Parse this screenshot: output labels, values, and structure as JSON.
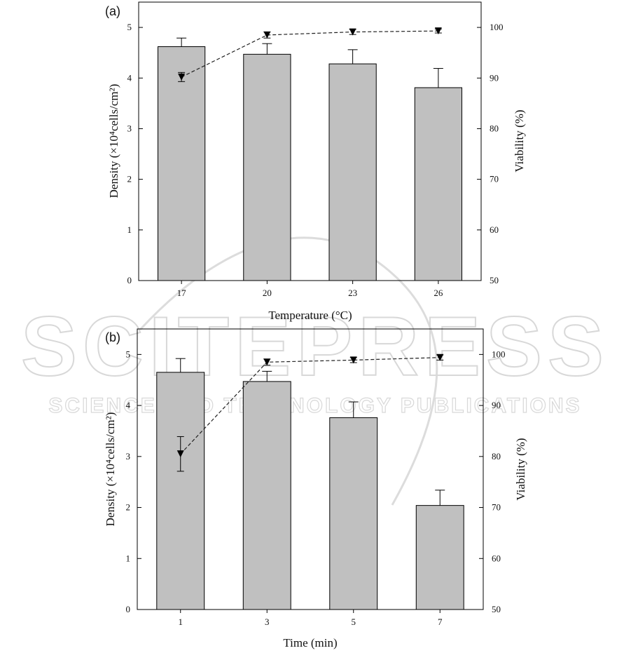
{
  "watermark": {
    "line1": "SCITEPRESS",
    "line2": "SCIENCE AND TECHNOLOGY PUBLICATIONS"
  },
  "chart_data": [
    {
      "type": "bar",
      "panel_label": "(a)",
      "xlabel": "Temperature (°C)",
      "ylabel_left": "Density (×10⁴cells/cm²)",
      "ylabel_right": "Viability (%)",
      "categories": [
        "17",
        "20",
        "23",
        "26"
      ],
      "series": [
        {
          "axis": "left",
          "kind": "bar",
          "values": [
            4.62,
            4.47,
            4.28,
            3.81
          ],
          "errors": [
            0.17,
            0.21,
            0.28,
            0.38
          ]
        },
        {
          "axis": "right",
          "kind": "line",
          "values": [
            90.2,
            98.5,
            99.1,
            99.3
          ],
          "errors": [
            0.9,
            0.6,
            0.5,
            0.4
          ]
        }
      ],
      "ylim_left": [
        0,
        5.5
      ],
      "ylim_right": [
        50,
        105
      ],
      "yticks_left": [
        0,
        1,
        2,
        3,
        4,
        5
      ],
      "yticks_right": [
        50,
        60,
        70,
        80,
        90,
        100
      ],
      "colors": {
        "bar": "#c0c0c0",
        "line": "#222222"
      }
    },
    {
      "type": "bar",
      "panel_label": "(b)",
      "xlabel": "Time (min)",
      "ylabel_left": "Density (×10⁴cells/cm²)",
      "ylabel_right": "Viability (%)",
      "categories": [
        "1",
        "3",
        "5",
        "7"
      ],
      "series": [
        {
          "axis": "left",
          "kind": "bar",
          "values": [
            4.65,
            4.47,
            3.76,
            2.04
          ],
          "errors": [
            0.27,
            0.2,
            0.31,
            0.3
          ]
        },
        {
          "axis": "right",
          "kind": "line",
          "values": [
            80.5,
            98.5,
            98.9,
            99.4
          ],
          "errors": [
            3.4,
            0.6,
            0.5,
            0.5
          ]
        }
      ],
      "ylim_left": [
        0,
        5.5
      ],
      "ylim_right": [
        50,
        105
      ],
      "yticks_left": [
        0,
        1,
        2,
        3,
        4,
        5
      ],
      "yticks_right": [
        50,
        60,
        70,
        80,
        90,
        100
      ],
      "colors": {
        "bar": "#c0c0c0",
        "line": "#222222"
      }
    }
  ]
}
